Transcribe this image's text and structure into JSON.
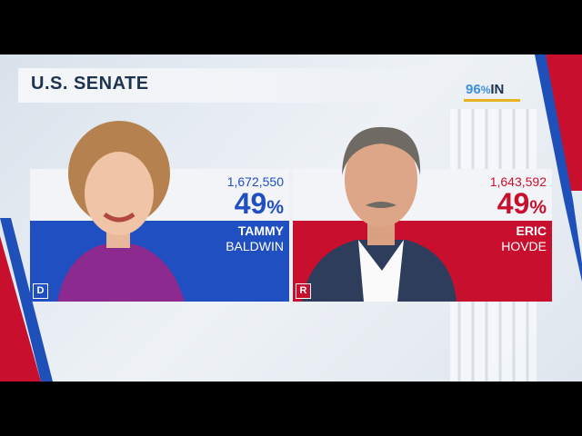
{
  "header": {
    "title": "U.S. SENATE",
    "reporting": {
      "value": "96",
      "unit": "%",
      "label": "IN"
    }
  },
  "candidates": [
    {
      "party": "D",
      "votes": "1,672,550",
      "percent": {
        "value": "49",
        "unit": "%"
      },
      "first_name": "TAMMY",
      "last_name": "BALDWIN"
    },
    {
      "party": "R",
      "votes": "1,643,592",
      "percent": {
        "value": "49",
        "unit": "%"
      },
      "first_name": "ERIC",
      "last_name": "HOVDE"
    }
  ]
}
